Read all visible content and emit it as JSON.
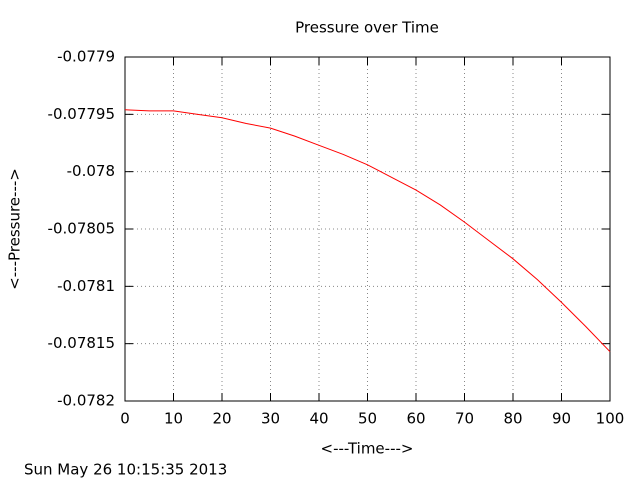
{
  "chart_data": {
    "type": "line",
    "title": "Pressure over Time",
    "x_label": "<---Time--->",
    "y_label": "<---Pressure--->",
    "timestamp": "Sun May 26 10:15:35 2013",
    "x": [
      0,
      5,
      10,
      15,
      20,
      25,
      30,
      35,
      40,
      45,
      50,
      55,
      60,
      65,
      70,
      75,
      80,
      85,
      90,
      95,
      100
    ],
    "series": [
      {
        "color": "#ff0000",
        "values": [
          -0.077946,
          -0.077947,
          -0.077947,
          -0.07795,
          -0.077953,
          -0.077958,
          -0.077962,
          -0.077969,
          -0.077977,
          -0.077985,
          -0.077994,
          -0.078005,
          -0.078016,
          -0.078029,
          -0.078044,
          -0.07806,
          -0.078076,
          -0.078094,
          -0.078114,
          -0.078135,
          -0.078157
        ]
      }
    ],
    "xlim": [
      0,
      100
    ],
    "xticks": [
      0,
      10,
      20,
      30,
      40,
      50,
      60,
      70,
      80,
      90,
      100
    ],
    "ylim": [
      -0.0782,
      -0.0779
    ],
    "yticks": [
      -0.0782,
      -0.07815,
      -0.0781,
      -0.07805,
      -0.078,
      -0.07795,
      -0.0779
    ],
    "grid": true
  }
}
